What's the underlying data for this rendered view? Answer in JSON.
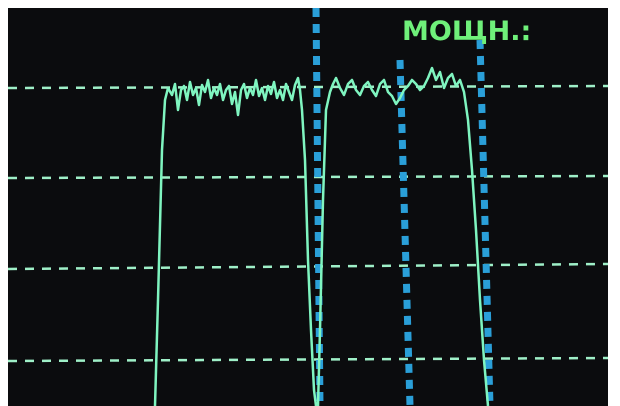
{
  "screen": {
    "label": "МОЩН.:"
  }
}
